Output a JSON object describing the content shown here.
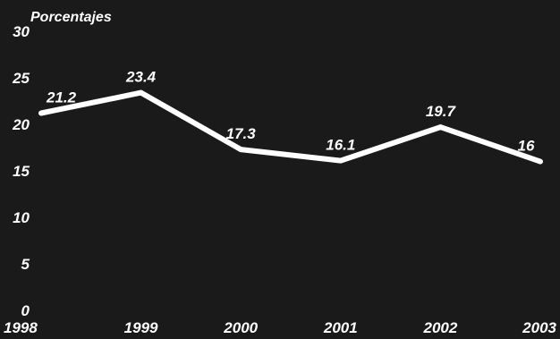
{
  "chart_data": {
    "type": "line",
    "title": "",
    "ylabel": "Porcentajes",
    "xlabel": "",
    "categories": [
      "1998",
      "1999",
      "2000",
      "2001",
      "2002",
      "2003"
    ],
    "series": [
      {
        "values": [
          21.2,
          23.4,
          17.3,
          16.1,
          19.7,
          16
        ],
        "labels": [
          "21.2",
          "23.4",
          "17.3",
          "16.1",
          "19.7",
          "16"
        ]
      }
    ],
    "yticks": [
      "0",
      "5",
      "10",
      "15",
      "20",
      "25",
      "30"
    ],
    "ylim": [
      0,
      30
    ],
    "grid": false,
    "legend": "none",
    "colors": {
      "background": "#1a1a1a",
      "line": "#ffffff",
      "text": "#ffffff"
    }
  }
}
